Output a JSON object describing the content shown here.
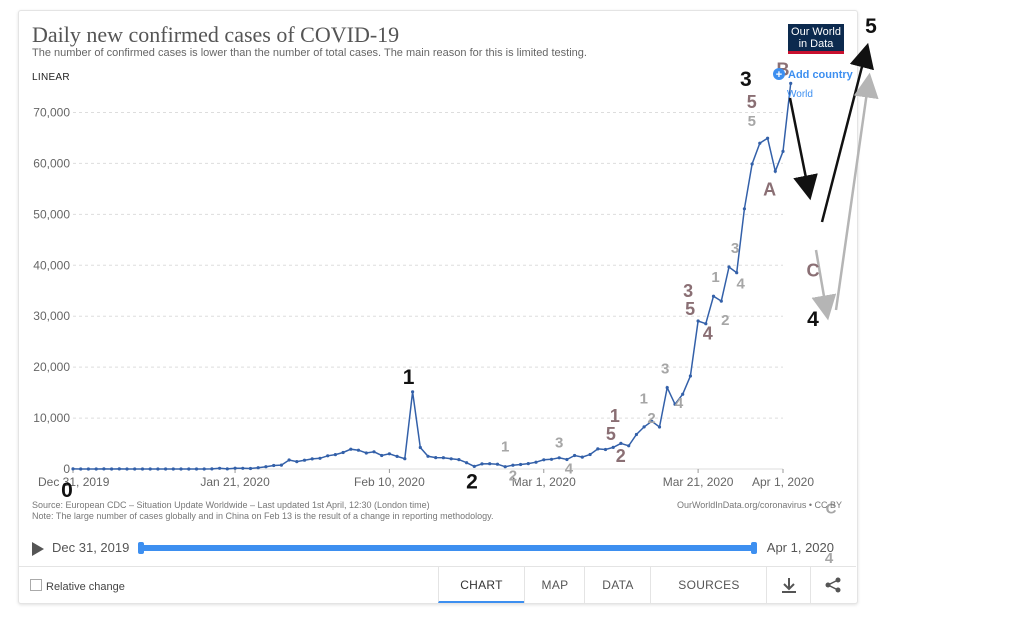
{
  "title": "Daily new confirmed cases of COVID-19",
  "subtitle": "The number of confirmed cases is lower than the number of total cases. The main reason for this is limited testing.",
  "logo": {
    "line1": "Our World",
    "line2": "in Data"
  },
  "scale_label": "LINEAR",
  "legend": {
    "add_country": "Add country",
    "series_label": "World"
  },
  "source_line": "Source: European CDC – Situation Update Worldwide – Last updated 1st April, 12:30 (London time)",
  "note_line": "Note: The large number of cases globally and in China on Feb 13 is the result of a change in reporting methodology.",
  "url": "OurWorldInData.org/coronavirus • CC BY",
  "timeline": {
    "start": "Dec 31, 2019",
    "end": "Apr 1, 2020"
  },
  "footer": {
    "relative_change": "Relative change",
    "tabs": [
      "CHART",
      "MAP",
      "DATA",
      "SOURCES"
    ],
    "active_tab": "CHART",
    "download_icon": "download-icon",
    "share_icon": "share-icon"
  },
  "colors": {
    "line": "#3360a9",
    "accent": "#3d8ff0",
    "wave_dark": "#111111",
    "wave_mauve": "#8a6f74",
    "wave_gray": "#a6a6a6"
  },
  "chart_data": {
    "type": "line",
    "title": "Daily new confirmed cases of COVID-19",
    "ylim": [
      0,
      75000
    ],
    "y_ticks": [
      0,
      10000,
      20000,
      30000,
      40000,
      50000,
      60000,
      70000
    ],
    "y_tick_labels": [
      "0",
      "10,000",
      "20,000",
      "30,000",
      "40,000",
      "50,000",
      "60,000",
      "70,000"
    ],
    "x_ticks": [
      "2019-12-31",
      "2020-01-21",
      "2020-02-10",
      "2020-03-01",
      "2020-03-21",
      "2020-04-01"
    ],
    "x_tick_labels": [
      "Dec 31, 2019",
      "Jan 21, 2020",
      "Feb 10, 2020",
      "Mar 1, 2020",
      "Mar 21, 2020",
      "Apr 1, 2020"
    ],
    "grid": true,
    "series": [
      {
        "name": "World",
        "x_start": "2019-12-31",
        "values": [
          27,
          0,
          0,
          0,
          17,
          0,
          15,
          0,
          0,
          0,
          0,
          1,
          0,
          0,
          0,
          0,
          0,
          4,
          17,
          136,
          19,
          151,
          140,
          97,
          259,
          457,
          688,
          769,
          1771,
          1459,
          1737,
          1981,
          2099,
          2589,
          2825,
          3235,
          3884,
          3694,
          3143,
          3385,
          2652,
          2984,
          2473,
          2022,
          15150,
          4224,
          2496,
          2230,
          2213,
          1993,
          1840,
          1234,
          515,
          1003,
          1050,
          934,
          451,
          753,
          876,
          1065,
          1335,
          1810,
          1897,
          2197,
          1870,
          2656,
          2340,
          2840,
          3954,
          3822,
          4236,
          5020,
          4559,
          6778,
          8260,
          9368,
          8247,
          15985,
          12727,
          14688,
          18256,
          29055,
          28522,
          33932,
          32957,
          39653,
          38545,
          51088,
          59876,
          63974,
          64949,
          58455,
          62361,
          75700
        ]
      }
    ],
    "annotations": [
      {
        "text": "0",
        "x": "2019-12-31",
        "y": 0,
        "tone": "dark"
      },
      {
        "text": "1",
        "x": "2020-02-13",
        "y": 15150,
        "tone": "dark"
      },
      {
        "text": "2",
        "x": "2020-02-22",
        "y": 515,
        "tone": "dark"
      },
      {
        "text": "1",
        "x": "2020-02-25",
        "y": 1100,
        "tone": "gray"
      },
      {
        "text": "2",
        "x": "2020-02-26",
        "y": 451,
        "tone": "gray"
      },
      {
        "text": "3",
        "x": "2020-03-03",
        "y": 1897,
        "tone": "gray"
      },
      {
        "text": "4",
        "x": "2020-03-04",
        "y": 1870,
        "tone": "gray"
      },
      {
        "text": "1",
        "x": "2020-03-11",
        "y": 4559,
        "tone": "mauve"
      },
      {
        "text": "5",
        "x": "2020-03-11",
        "y": 4559,
        "tone": "mauve"
      },
      {
        "text": "2",
        "x": "2020-03-12",
        "y": 4559,
        "tone": "mauve"
      },
      {
        "text": "1",
        "x": "2020-03-15",
        "y": 9368,
        "tone": "gray"
      },
      {
        "text": "2",
        "x": "2020-03-16",
        "y": 8247,
        "tone": "gray"
      },
      {
        "text": "3",
        "x": "2020-03-17",
        "y": 15985,
        "tone": "gray"
      },
      {
        "text": "4",
        "x": "2020-03-18",
        "y": 12727,
        "tone": "gray"
      },
      {
        "text": "3",
        "x": "2020-03-21",
        "y": 29055,
        "tone": "mauve"
      },
      {
        "text": "5",
        "x": "2020-03-21",
        "y": 29055,
        "tone": "mauve"
      },
      {
        "text": "4",
        "x": "2020-03-22",
        "y": 28522,
        "tone": "mauve"
      },
      {
        "text": "1",
        "x": "2020-03-23",
        "y": 33932,
        "tone": "gray"
      },
      {
        "text": "2",
        "x": "2020-03-24",
        "y": 32957,
        "tone": "gray"
      },
      {
        "text": "3",
        "x": "2020-03-25",
        "y": 39653,
        "tone": "gray"
      },
      {
        "text": "4",
        "x": "2020-03-26",
        "y": 38545,
        "tone": "gray"
      },
      {
        "text": "3",
        "x": "2020-03-29",
        "y": 64949,
        "tone": "dark"
      },
      {
        "text": "5",
        "x": "2020-03-29",
        "y": 64949,
        "tone": "mauve"
      },
      {
        "text": "5",
        "x": "2020-03-29",
        "y": 64949,
        "tone": "gray"
      },
      {
        "text": "A",
        "x": "2020-03-30",
        "y": 58455,
        "tone": "mauve"
      },
      {
        "text": "B",
        "x": "2020-04-01",
        "y": 75700,
        "tone": "mauve"
      },
      {
        "text": "C",
        "x": "2020-04-01",
        "y": 50000,
        "tone": "mauve"
      },
      {
        "text": "4",
        "x": "2020-04-01",
        "y": 45000,
        "tone": "dark"
      },
      {
        "text": "C",
        "x": "2020-04-01",
        "y": 29000,
        "tone": "gray"
      },
      {
        "text": "4",
        "x": "2020-04-01",
        "y": 24000,
        "tone": "gray"
      },
      {
        "text": "5",
        "x": "2020-04-01",
        "y": 75000,
        "tone": "dark"
      }
    ]
  }
}
